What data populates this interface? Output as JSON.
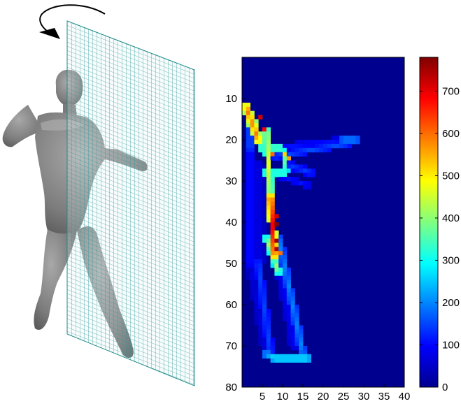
{
  "figure": {
    "left_panel": "3D scanned human figure with a rotation arrow and a vertical projection grid plane",
    "right_panel": "heatmap of the projected silhouette density with a colorbar"
  },
  "chart_data": [
    {
      "type": "heatmap",
      "title": "",
      "xlabel": "",
      "ylabel": "",
      "xlim": [
        0,
        40
      ],
      "ylim": [
        80,
        0
      ],
      "x_ticks": [
        {
          "value": 5,
          "label": "5"
        },
        {
          "value": 10,
          "label": "10"
        },
        {
          "value": 15,
          "label": "15"
        },
        {
          "value": 20,
          "label": "20"
        },
        {
          "value": 25,
          "label": "25"
        },
        {
          "value": 30,
          "label": "30"
        },
        {
          "value": 35,
          "label": "35"
        },
        {
          "value": 40,
          "label": "40"
        }
      ],
      "y_ticks": [
        {
          "value": 10,
          "label": "10"
        },
        {
          "value": 20,
          "label": "20"
        },
        {
          "value": 30,
          "label": "30"
        },
        {
          "value": 40,
          "label": "40"
        },
        {
          "value": 50,
          "label": "50"
        },
        {
          "value": 60,
          "label": "60"
        },
        {
          "value": 70,
          "label": "70"
        },
        {
          "value": 80,
          "label": "80"
        }
      ],
      "colormap": "jet",
      "color_range": [
        0,
        780
      ],
      "background_value": 0,
      "segments": [
        {
          "name": "raised-arm-upper",
          "from": [
            1,
            12
          ],
          "to": [
            4,
            20
          ],
          "width": 1.2,
          "value": 600
        },
        {
          "name": "raised-arm-edge",
          "from": [
            2,
            14
          ],
          "to": [
            2,
            22
          ],
          "width": 0.8,
          "value": 180
        },
        {
          "name": "torso-left-edge",
          "from": [
            2,
            22
          ],
          "to": [
            2,
            50
          ],
          "width": 1.0,
          "value": 120
        },
        {
          "name": "torso-left-fill",
          "from": [
            4,
            26
          ],
          "to": [
            4,
            50
          ],
          "width": 1.5,
          "value": 80
        },
        {
          "name": "spine-upper",
          "from": [
            6,
            18
          ],
          "to": [
            7,
            34
          ],
          "width": 0.9,
          "value": 470
        },
        {
          "name": "spine-lower",
          "from": [
            7,
            34
          ],
          "to": [
            8,
            48
          ],
          "width": 0.9,
          "value": 700
        },
        {
          "name": "extended-arm-upper",
          "from": [
            8,
            22
          ],
          "to": [
            27,
            20
          ],
          "width": 1.0,
          "value": 110
        },
        {
          "name": "extended-arm-lower",
          "from": [
            8,
            24
          ],
          "to": [
            26,
            21
          ],
          "width": 0.8,
          "value": 160
        },
        {
          "name": "hand",
          "from": [
            25,
            20
          ],
          "to": [
            28,
            20
          ],
          "width": 0.9,
          "value": 220
        },
        {
          "name": "shoulder-ring-top",
          "from": [
            4,
            22
          ],
          "to": [
            10,
            22
          ],
          "width": 0.7,
          "value": 440
        },
        {
          "name": "shoulder-ring-right",
          "from": [
            10,
            22
          ],
          "to": [
            11,
            28
          ],
          "width": 0.7,
          "value": 380
        },
        {
          "name": "shoulder-ring-bottom",
          "from": [
            5,
            28
          ],
          "to": [
            11,
            28
          ],
          "width": 0.7,
          "value": 420
        },
        {
          "name": "chest-right",
          "from": [
            11,
            26
          ],
          "to": [
            17,
            28
          ],
          "width": 1.0,
          "value": 140
        },
        {
          "name": "chest-right-lower",
          "from": [
            10,
            29
          ],
          "to": [
            16,
            31
          ],
          "width": 0.9,
          "value": 110
        },
        {
          "name": "waist-bright",
          "from": [
            6,
            44
          ],
          "to": [
            9,
            52
          ],
          "width": 0.9,
          "value": 420
        },
        {
          "name": "left-leg",
          "from": [
            4,
            50
          ],
          "to": [
            7,
            72
          ],
          "width": 1.0,
          "value": 150
        },
        {
          "name": "left-leg-fill",
          "from": [
            2,
            50
          ],
          "to": [
            6,
            72
          ],
          "width": 1.2,
          "value": 70
        },
        {
          "name": "right-leg",
          "from": [
            9,
            44
          ],
          "to": [
            15,
            72
          ],
          "width": 1.0,
          "value": 200
        },
        {
          "name": "right-leg-fill",
          "from": [
            8,
            44
          ],
          "to": [
            13,
            70
          ],
          "width": 1.4,
          "value": 90
        },
        {
          "name": "feet",
          "from": [
            8,
            73
          ],
          "to": [
            16,
            73
          ],
          "width": 0.8,
          "value": 320
        },
        {
          "name": "feet-left",
          "from": [
            6,
            72
          ],
          "to": [
            9,
            73
          ],
          "width": 0.8,
          "value": 260
        }
      ],
      "hot_cells": [
        {
          "x": 4,
          "y": 14,
          "value": 720
        },
        {
          "x": 5,
          "y": 17,
          "value": 680
        },
        {
          "x": 8,
          "y": 38,
          "value": 720
        },
        {
          "x": 8,
          "y": 40,
          "value": 780
        },
        {
          "x": 8,
          "y": 44,
          "value": 760
        },
        {
          "x": 8,
          "y": 46,
          "value": 740
        },
        {
          "x": 9,
          "y": 47,
          "value": 600
        },
        {
          "x": 10,
          "y": 23,
          "value": 520
        },
        {
          "x": 11,
          "y": 24,
          "value": 560
        },
        {
          "x": 7,
          "y": 23,
          "value": 600
        }
      ]
    },
    {
      "type": "colorbar",
      "ylim": [
        0,
        780
      ],
      "ticks": [
        {
          "value": 0,
          "label": "0"
        },
        {
          "value": 100,
          "label": "100"
        },
        {
          "value": 200,
          "label": "200"
        },
        {
          "value": 300,
          "label": "300"
        },
        {
          "value": 400,
          "label": "400"
        },
        {
          "value": 500,
          "label": "500"
        },
        {
          "value": 600,
          "label": "600"
        },
        {
          "value": 700,
          "label": "700"
        }
      ]
    }
  ]
}
